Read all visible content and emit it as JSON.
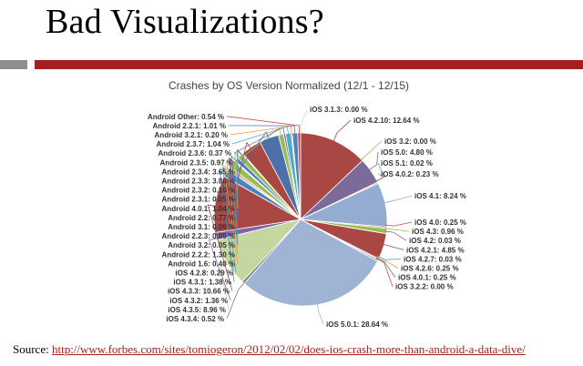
{
  "slide": {
    "title": "Bad Visualizations?",
    "source_label": "Source:",
    "source_url": "http://www.forbes.com/sites/tomiogeron/2012/02/02/does-ios-crash-more-than-android-a-data-dive/"
  },
  "colors": {
    "accent_bar": "#a32020",
    "gray_bar": "#8f8f8f",
    "link": "#a32020"
  },
  "chart_data": {
    "type": "pie",
    "title": "Crashes by OS Version Normalized (12/1 - 12/15)",
    "unit": "%",
    "slices": [
      {
        "label": "iOS 3.1.3",
        "value": 0.0,
        "display": "0.00 %",
        "color": "#c9d6ea",
        "side": "right"
      },
      {
        "label": "iOS 4.2.10",
        "value": 12.64,
        "display": "12.64 %",
        "color": "#a84743",
        "side": "right"
      },
      {
        "label": "iOS 3.2",
        "value": 0.0,
        "display": "0.00 %",
        "color": "#9bbb59",
        "side": "right"
      },
      {
        "label": "iOS 5.0",
        "value": 4.8,
        "display": "4.80 %",
        "color": "#7b6a9a",
        "side": "right"
      },
      {
        "label": "iOS 5.1",
        "value": 0.02,
        "display": "0.02 %",
        "color": "#5da3b8",
        "side": "right"
      },
      {
        "label": "iOS 4.0.2",
        "value": 0.23,
        "display": "0.23 %",
        "color": "#e69244",
        "side": "right"
      },
      {
        "label": "iOS 4.1",
        "value": 8.24,
        "display": "8.24 %",
        "color": "#94acd2",
        "side": "right"
      },
      {
        "label": "iOS 4.0",
        "value": 0.25,
        "display": "0.25 %",
        "color": "#c0504d",
        "side": "right"
      },
      {
        "label": "iOS 4.3",
        "value": 0.96,
        "display": "0.96 %",
        "color": "#9bbb59",
        "side": "right"
      },
      {
        "label": "iOS 4.2",
        "value": 0.03,
        "display": "0.03 %",
        "color": "#8064a2",
        "side": "right"
      },
      {
        "label": "iOS 4.2.1",
        "value": 4.85,
        "display": "4.85 %",
        "color": "#a84743",
        "side": "right"
      },
      {
        "label": "iOS 4.2.7",
        "value": 0.03,
        "display": "0.03 %",
        "color": "#4bacc6",
        "side": "right"
      },
      {
        "label": "iOS 4.2.6",
        "value": 0.25,
        "display": "0.25 %",
        "color": "#f79646",
        "side": "right"
      },
      {
        "label": "iOS 4.0.1",
        "value": 0.25,
        "display": "0.25 %",
        "color": "#4f81bd",
        "side": "right"
      },
      {
        "label": "iOS 3.2.2",
        "value": 0.0,
        "display": "0.00 %",
        "color": "#c0504d",
        "side": "right"
      },
      {
        "label": "iOS 5.0.1",
        "value": 28.64,
        "display": "28.64 %",
        "color": "#9fb4d4",
        "side": "bottom"
      },
      {
        "label": "iOS 4.3.4",
        "value": 0.52,
        "display": "0.52 %",
        "color": "#7f7f7f",
        "side": "left"
      },
      {
        "label": "iOS 4.3.5",
        "value": 8.96,
        "display": "8.96 %",
        "color": "#c5d6a0",
        "side": "left"
      },
      {
        "label": "iOS 4.3.2",
        "value": 1.36,
        "display": "1.36 %",
        "color": "#8064a2",
        "side": "left"
      },
      {
        "label": "iOS 4.3.3",
        "value": 10.66,
        "display": "10.66 %",
        "color": "#a84743",
        "side": "left"
      },
      {
        "label": "iOS 4.3.1",
        "value": 1.38,
        "display": "1.38 %",
        "color": "#4f81bd",
        "side": "left"
      },
      {
        "label": "iOS 4.2.8",
        "value": 0.29,
        "display": "0.29 %",
        "color": "#4bacc6",
        "side": "left"
      },
      {
        "label": "Android 1.6",
        "value": 0.4,
        "display": "0.40 %",
        "color": "#f79646",
        "side": "left"
      },
      {
        "label": "Android 2.2.2",
        "value": 1.3,
        "display": "1.30 %",
        "color": "#9bbb59",
        "side": "left"
      },
      {
        "label": "Android 3.2",
        "value": 0.05,
        "display": "0.05 %",
        "color": "#8064a2",
        "side": "left"
      },
      {
        "label": "Android 2.2.3",
        "value": 0.05,
        "display": "0.05 %",
        "color": "#4bacc6",
        "side": "left"
      },
      {
        "label": "Android 3.1",
        "value": 0.09,
        "display": "0.09 %",
        "color": "#c0504d",
        "side": "left"
      },
      {
        "label": "Android 2.2",
        "value": 0.77,
        "display": "0.77 %",
        "color": "#4f81bd",
        "side": "left"
      },
      {
        "label": "Android 4.0.1",
        "value": 1.04,
        "display": "1.04 %",
        "color": "#9bbb59",
        "side": "left"
      },
      {
        "label": "Android 2.3.1",
        "value": 0.05,
        "display": "0.05 %",
        "color": "#8064a2",
        "side": "left"
      },
      {
        "label": "Android 2.3.2",
        "value": 0.1,
        "display": "0.10 %",
        "color": "#4bacc6",
        "side": "left"
      },
      {
        "label": "Android 2.3.3",
        "value": 3.86,
        "display": "3.86 %",
        "color": "#a84743",
        "side": "left"
      },
      {
        "label": "Android 2.3.4",
        "value": 3.65,
        "display": "3.65 %",
        "color": "#4f6fa8",
        "side": "left"
      },
      {
        "label": "Android 2.3.5",
        "value": 0.97,
        "display": "0.97 %",
        "color": "#9bbb59",
        "side": "left"
      },
      {
        "label": "Android 2.3.6",
        "value": 0.37,
        "display": "0.37 %",
        "color": "#8064a2",
        "side": "left"
      },
      {
        "label": "Android 2.3.7",
        "value": 1.04,
        "display": "1.04 %",
        "color": "#4bacc6",
        "side": "left"
      },
      {
        "label": "Android 3.2.1",
        "value": 0.2,
        "display": "0.20 %",
        "color": "#f79646",
        "side": "left"
      },
      {
        "label": "Android 2.2.1",
        "value": 1.01,
        "display": "1.01 %",
        "color": "#4f81bd",
        "side": "left"
      },
      {
        "label": "Android Other",
        "value": 0.54,
        "display": "0.54 %",
        "color": "#c0504d",
        "side": "left"
      }
    ]
  }
}
